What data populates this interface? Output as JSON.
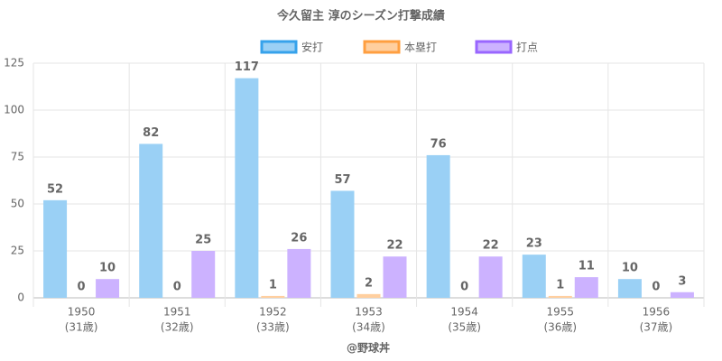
{
  "chart_data": {
    "type": "bar",
    "title": "今久留主 淳のシーズン打撃成績",
    "categories": [
      [
        "1950",
        "(31歳)"
      ],
      [
        "1951",
        "(32歳)"
      ],
      [
        "1952",
        "(33歳)"
      ],
      [
        "1953",
        "(34歳)"
      ],
      [
        "1954",
        "(35歳)"
      ],
      [
        "1955",
        "(36歳)"
      ],
      [
        "1956",
        "(37歳)"
      ]
    ],
    "series": [
      {
        "name": "安打",
        "color": "#9ad0f5",
        "border": "#36a2eb",
        "values": [
          52,
          82,
          117,
          57,
          76,
          23,
          10
        ]
      },
      {
        "name": "本塁打",
        "color": "#ffcf9f",
        "border": "#ff9f40",
        "values": [
          0,
          0,
          1,
          2,
          0,
          1,
          0
        ]
      },
      {
        "name": "打点",
        "color": "#ccb2ff",
        "border": "#9966ff",
        "values": [
          10,
          25,
          26,
          22,
          22,
          11,
          3
        ]
      }
    ],
    "ylim": [
      0,
      125
    ],
    "yticks": [
      0,
      25,
      50,
      75,
      100,
      125
    ],
    "grid": true,
    "legend": "top",
    "source": "@野球丼"
  }
}
